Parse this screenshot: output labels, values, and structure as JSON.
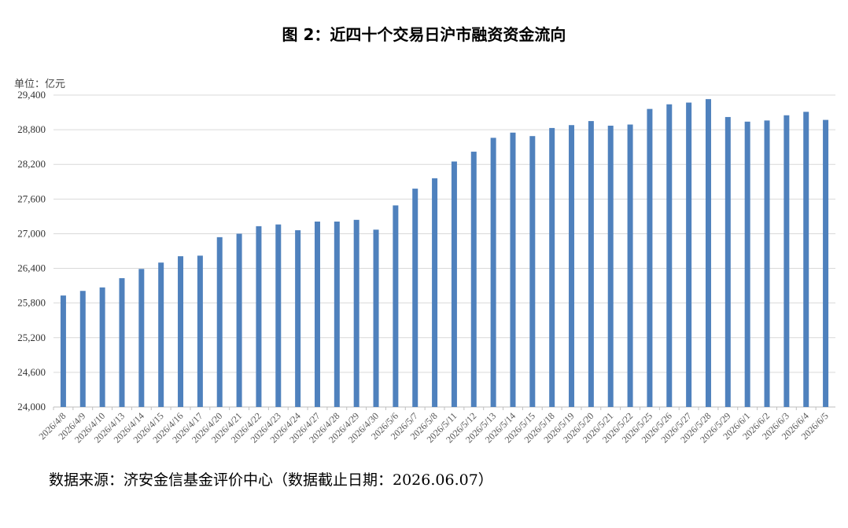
{
  "page": {
    "title": "图 2：近四十个交易日沪市融资资金流向",
    "unit": "单位：亿元",
    "source": "数据来源：济安金信基金评价中心（数据截止日期：2026.06.07）"
  },
  "colors": {
    "bar": "#4f81bd",
    "grid": "#d9d9d9",
    "axis": "#bfbfbf"
  },
  "chart_data": {
    "type": "bar",
    "title": "图 2：近四十个交易日沪市融资资金流向",
    "ylabel": "单位：亿元",
    "xlabel": "",
    "ylim": [
      24000,
      29400
    ],
    "yticks": [
      24000,
      24600,
      25200,
      25800,
      26400,
      27000,
      27600,
      28200,
      28800,
      29400
    ],
    "ytick_labels": [
      "24,000",
      "24,600",
      "25,200",
      "25,800",
      "26,400",
      "27,000",
      "27,600",
      "28,200",
      "28,800",
      "29,400"
    ],
    "grid": true,
    "legend": "none",
    "categories": [
      "2026/4/8",
      "2026/4/9",
      "2026/4/10",
      "2026/4/13",
      "2026/4/14",
      "2026/4/15",
      "2026/4/16",
      "2026/4/17",
      "2026/4/20",
      "2026/4/21",
      "2026/4/22",
      "2026/4/23",
      "2026/4/24",
      "2026/4/27",
      "2026/4/28",
      "2026/4/29",
      "2026/4/30",
      "2026/5/6",
      "2026/5/7",
      "2026/5/8",
      "2026/5/11",
      "2026/5/12",
      "2026/5/13",
      "2026/5/14",
      "2026/5/15",
      "2026/5/18",
      "2026/5/19",
      "2026/5/20",
      "2026/5/21",
      "2026/5/22",
      "2026/5/25",
      "2026/5/26",
      "2026/5/27",
      "2026/5/28",
      "2026/5/29",
      "2026/6/1",
      "2026/6/2",
      "2026/6/3",
      "2026/6/4",
      "2026/6/5"
    ],
    "values": [
      25930,
      26010,
      26070,
      26230,
      26390,
      26500,
      26610,
      26620,
      26940,
      27000,
      27130,
      27160,
      27060,
      27210,
      27210,
      27240,
      27070,
      27490,
      27780,
      27960,
      28250,
      28420,
      28660,
      28750,
      28690,
      28830,
      28880,
      28950,
      28870,
      28890,
      29160,
      29240,
      29270,
      29330,
      29020,
      28940,
      28960,
      29050,
      29110,
      28970
    ]
  }
}
